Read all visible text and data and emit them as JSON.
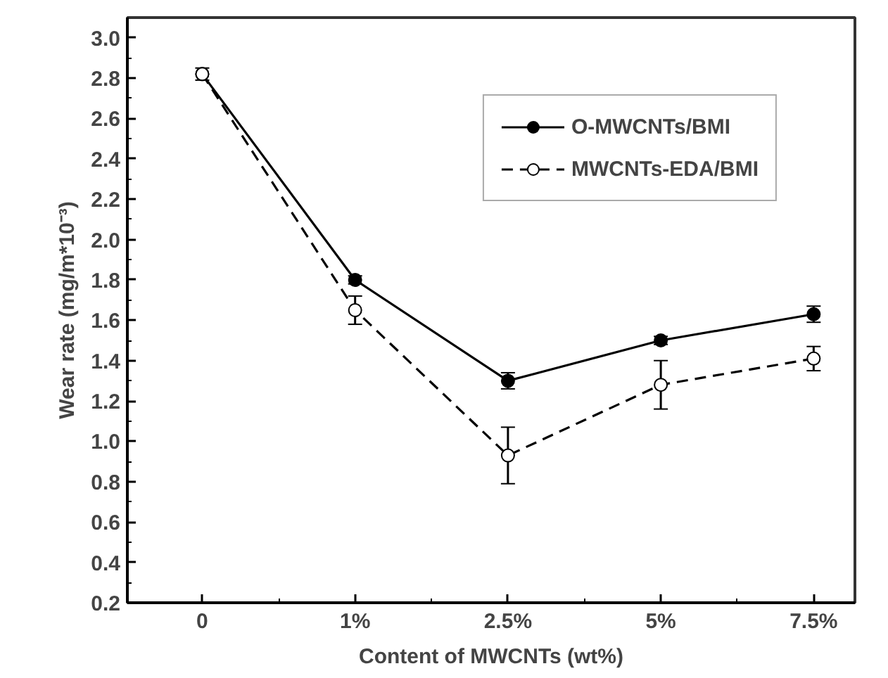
{
  "chart_data": {
    "type": "line",
    "xlabel": "Content of MWCNTs (wt%)",
    "ylabel": "Wear rate (mg/m*10⁻³)",
    "categories": [
      "0",
      "1%",
      "2.5%",
      "5%",
      "7.5%"
    ],
    "ylim": [
      0.2,
      3.1
    ],
    "yticks": [
      0.2,
      0.4,
      0.6,
      0.8,
      {
        "value": 1,
        "label": "1.0"
      },
      1.2,
      1.4,
      1.6,
      1.8,
      {
        "value": 2,
        "label": "2.0"
      },
      2.2,
      2.4,
      2.6,
      2.8,
      {
        "value": 3,
        "label": "3.0"
      }
    ],
    "series": [
      {
        "name": "O-MWCNTs/BMI",
        "color": "#000000",
        "values": [
          2.82,
          1.8,
          1.3,
          1.5,
          1.63
        ],
        "errors": [
          null,
          0.02,
          0.04,
          0.02,
          0.04
        ],
        "marker": "circle",
        "line_style": "solid"
      },
      {
        "name": "MWCNTs-EDA/BMI",
        "color": "#000000",
        "values": [
          2.82,
          1.65,
          0.93,
          1.28,
          1.41
        ],
        "errors": [
          0.03,
          0.07,
          0.14,
          0.12,
          0.06
        ],
        "marker": "open_circle",
        "line_style": "dashed"
      }
    ],
    "grid": false,
    "legend": "top right"
  }
}
